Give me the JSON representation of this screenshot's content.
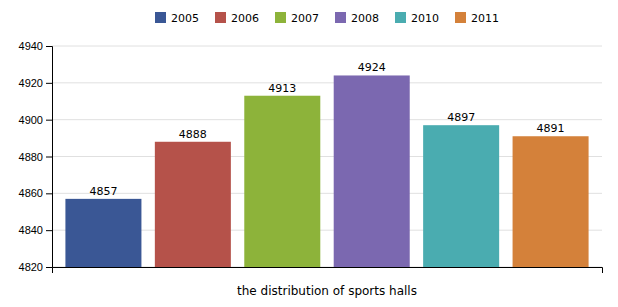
{
  "chart_data": {
    "type": "bar",
    "categories": [
      "2005",
      "2006",
      "2007",
      "2008",
      "2010",
      "2011"
    ],
    "values": [
      4857,
      4888,
      4913,
      4924,
      4897,
      4891
    ],
    "colors": [
      "#3A5795",
      "#B5524A",
      "#8DB33A",
      "#7B68B0",
      "#4AACB0",
      "#D4813A"
    ],
    "xlabel": "the distribution of sports halls",
    "ylim": [
      4820,
      4940
    ],
    "yticks": [
      4820,
      4840,
      4860,
      4880,
      4900,
      4920,
      4940
    ],
    "grid": true,
    "legend": "top",
    "data_labels": true,
    "tick_labels": "y"
  }
}
